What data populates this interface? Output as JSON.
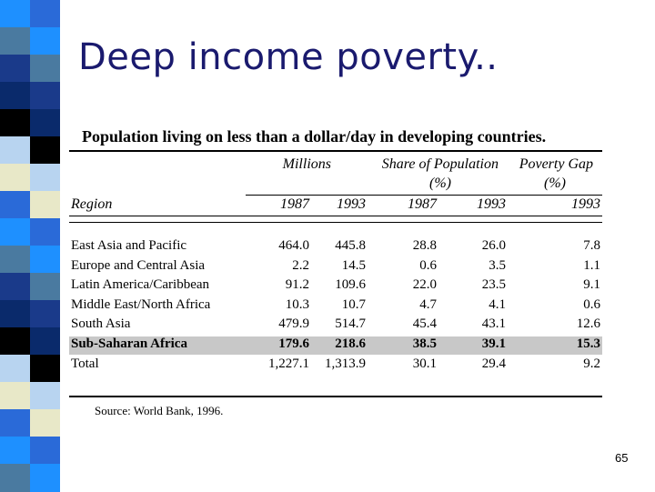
{
  "slide": {
    "title": "Deep income poverty..",
    "page_number": "65"
  },
  "table": {
    "title": "Population living on less than a dollar/day in developing countries.",
    "group_headers": {
      "millions": "Millions",
      "share": "Share of Population",
      "share_unit": "(%)",
      "gap": "Poverty Gap",
      "gap_unit": "(%)"
    },
    "columns": [
      "Region",
      "1987",
      "1993",
      "1987",
      "1993",
      "1993"
    ],
    "rows": [
      {
        "region": "East Asia and Pacific",
        "v": [
          "464.0",
          "445.8",
          "28.8",
          "26.0",
          "7.8"
        ]
      },
      {
        "region": "Europe and Central Asia",
        "v": [
          "2.2",
          "14.5",
          "0.6",
          "3.5",
          "1.1"
        ]
      },
      {
        "region": "Latin America/Caribbean",
        "v": [
          "91.2",
          "109.6",
          "22.0",
          "23.5",
          "9.1"
        ]
      },
      {
        "region": "Middle East/North Africa",
        "v": [
          "10.3",
          "10.7",
          "4.7",
          "4.1",
          "0.6"
        ]
      },
      {
        "region": "South Asia",
        "v": [
          "479.9",
          "514.7",
          "45.4",
          "43.1",
          "12.6"
        ]
      },
      {
        "region": "Sub-Saharan Africa",
        "v": [
          "179.6",
          "218.6",
          "38.5",
          "39.1",
          "15.3"
        ],
        "highlight": true
      },
      {
        "region": "Total",
        "v": [
          "1,227.1",
          "1,313.9",
          "30.1",
          "29.4",
          "9.2"
        ]
      }
    ],
    "source": "Source: World Bank, 1996."
  },
  "colors": {
    "stripe": [
      "#1e90ff",
      "#0a2a6b",
      "#e8e8c8",
      "#4a7aa0",
      "#000000",
      "#2a6ad8",
      "#1a3a8a",
      "#b8d4f0"
    ]
  }
}
